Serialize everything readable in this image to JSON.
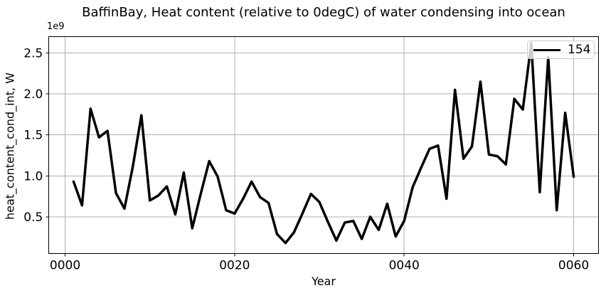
{
  "figure": {
    "background": "#ffffff"
  },
  "chart_data": {
    "type": "line",
    "title": "BaffinBay, Heat content (relative to 0degC) of water condensing into ocean",
    "xlabel": "Year",
    "ylabel": "heat_content_cond_int, W",
    "y_offset_text": "1e9",
    "y_unit_scale": 1000000000.0,
    "grid": true,
    "grid_color": "#b0b0b0",
    "line_color": "#000000",
    "line_width": 3.5,
    "spine_color": "#000000",
    "xlim": [
      -1.95,
      62.95
    ],
    "ylim": [
      0.05,
      2.7
    ],
    "xticks": {
      "values": [
        0,
        20,
        40,
        60
      ],
      "labels": [
        "0000",
        "0020",
        "0040",
        "0060"
      ]
    },
    "yticks": {
      "values": [
        0.5,
        1.0,
        1.5,
        2.0,
        2.5
      ],
      "labels": [
        "0.5",
        "1.0",
        "1.5",
        "2.0",
        "2.5"
      ]
    },
    "legend": {
      "position": "upper right",
      "entries": [
        {
          "label": "154",
          "color": "#000000"
        }
      ]
    },
    "series": [
      {
        "name": "154",
        "x": [
          1,
          2,
          3,
          4,
          5,
          6,
          7,
          8,
          9,
          10,
          11,
          12,
          13,
          14,
          15,
          16,
          17,
          18,
          19,
          20,
          21,
          22,
          23,
          24,
          25,
          26,
          27,
          28,
          29,
          30,
          31,
          32,
          33,
          34,
          35,
          36,
          37,
          38,
          39,
          40,
          41,
          42,
          43,
          44,
          45,
          46,
          47,
          48,
          49,
          50,
          51,
          52,
          53,
          54,
          55,
          56,
          57,
          58,
          59,
          60
        ],
        "y": [
          0.93,
          0.64,
          1.82,
          1.47,
          1.55,
          0.79,
          0.6,
          1.12,
          1.74,
          0.7,
          0.76,
          0.87,
          0.53,
          1.04,
          0.36,
          0.78,
          1.18,
          0.99,
          0.58,
          0.54,
          0.72,
          0.93,
          0.74,
          0.67,
          0.29,
          0.18,
          0.31,
          0.54,
          0.78,
          0.68,
          0.44,
          0.21,
          0.43,
          0.45,
          0.23,
          0.5,
          0.34,
          0.66,
          0.26,
          0.45,
          0.86,
          1.1,
          1.33,
          1.37,
          0.72,
          2.05,
          1.21,
          1.36,
          2.15,
          1.26,
          1.24,
          1.14,
          1.94,
          1.81,
          2.62,
          0.8,
          2.45,
          0.58,
          1.77,
          0.99
        ]
      }
    ]
  }
}
